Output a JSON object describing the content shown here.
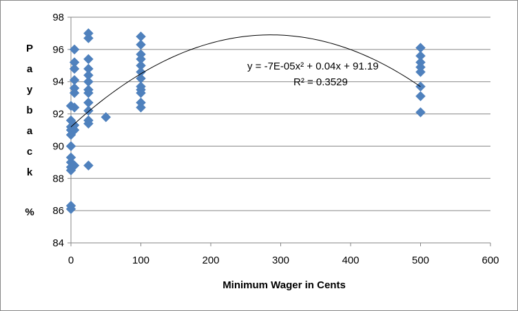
{
  "chart_data": {
    "type": "scatter",
    "xlabel": "Minimum Wager in Cents",
    "ylabel": "Payback %",
    "xlim": [
      0,
      600
    ],
    "ylim": [
      84,
      98
    ],
    "xticks": [
      "0",
      "100",
      "200",
      "300",
      "400",
      "500",
      "600"
    ],
    "yticks": [
      "84",
      "86",
      "88",
      "90",
      "92",
      "94",
      "96",
      "98"
    ],
    "grid": "horizontal",
    "marker_color": "#4F81BD",
    "trendline": {
      "type": "polynomial",
      "coefficients": {
        "a": -7e-05,
        "b": 0.04,
        "c": 91.19
      },
      "equation_label": "y = -7E-05x² + 0.04x + 91.19",
      "r2_label": "R² = 0.3529"
    },
    "points": [
      {
        "x": 0,
        "y": 86.1
      },
      {
        "x": 0,
        "y": 86.3
      },
      {
        "x": 0,
        "y": 88.5
      },
      {
        "x": 0,
        "y": 88.7
      },
      {
        "x": 0,
        "y": 89.0
      },
      {
        "x": 0,
        "y": 89.3
      },
      {
        "x": 0,
        "y": 90.0
      },
      {
        "x": 0,
        "y": 90.7
      },
      {
        "x": 0,
        "y": 91.0
      },
      {
        "x": 0,
        "y": 91.2
      },
      {
        "x": 0,
        "y": 91.6
      },
      {
        "x": 0,
        "y": 92.5
      },
      {
        "x": 5,
        "y": 88.8
      },
      {
        "x": 5,
        "y": 91.0
      },
      {
        "x": 5,
        "y": 91.3
      },
      {
        "x": 5,
        "y": 92.4
      },
      {
        "x": 5,
        "y": 93.3
      },
      {
        "x": 5,
        "y": 93.6
      },
      {
        "x": 5,
        "y": 94.1
      },
      {
        "x": 5,
        "y": 94.8
      },
      {
        "x": 5,
        "y": 95.2
      },
      {
        "x": 5,
        "y": 96.0
      },
      {
        "x": 25,
        "y": 88.8
      },
      {
        "x": 25,
        "y": 91.4
      },
      {
        "x": 25,
        "y": 91.6
      },
      {
        "x": 25,
        "y": 92.2
      },
      {
        "x": 25,
        "y": 92.7
      },
      {
        "x": 25,
        "y": 93.3
      },
      {
        "x": 25,
        "y": 93.5
      },
      {
        "x": 25,
        "y": 94.0
      },
      {
        "x": 25,
        "y": 94.4
      },
      {
        "x": 25,
        "y": 94.8
      },
      {
        "x": 25,
        "y": 95.4
      },
      {
        "x": 25,
        "y": 96.7
      },
      {
        "x": 25,
        "y": 97.0
      },
      {
        "x": 50,
        "y": 91.8
      },
      {
        "x": 100,
        "y": 92.4
      },
      {
        "x": 100,
        "y": 92.7
      },
      {
        "x": 100,
        "y": 93.3
      },
      {
        "x": 100,
        "y": 93.5
      },
      {
        "x": 100,
        "y": 93.7
      },
      {
        "x": 100,
        "y": 94.2
      },
      {
        "x": 100,
        "y": 94.6
      },
      {
        "x": 100,
        "y": 95.0
      },
      {
        "x": 100,
        "y": 95.4
      },
      {
        "x": 100,
        "y": 95.7
      },
      {
        "x": 100,
        "y": 96.3
      },
      {
        "x": 100,
        "y": 96.8
      },
      {
        "x": 500,
        "y": 92.1
      },
      {
        "x": 500,
        "y": 93.1
      },
      {
        "x": 500,
        "y": 93.7
      },
      {
        "x": 500,
        "y": 94.6
      },
      {
        "x": 500,
        "y": 94.9
      },
      {
        "x": 500,
        "y": 95.2
      },
      {
        "x": 500,
        "y": 95.6
      },
      {
        "x": 500,
        "y": 96.1
      }
    ]
  }
}
